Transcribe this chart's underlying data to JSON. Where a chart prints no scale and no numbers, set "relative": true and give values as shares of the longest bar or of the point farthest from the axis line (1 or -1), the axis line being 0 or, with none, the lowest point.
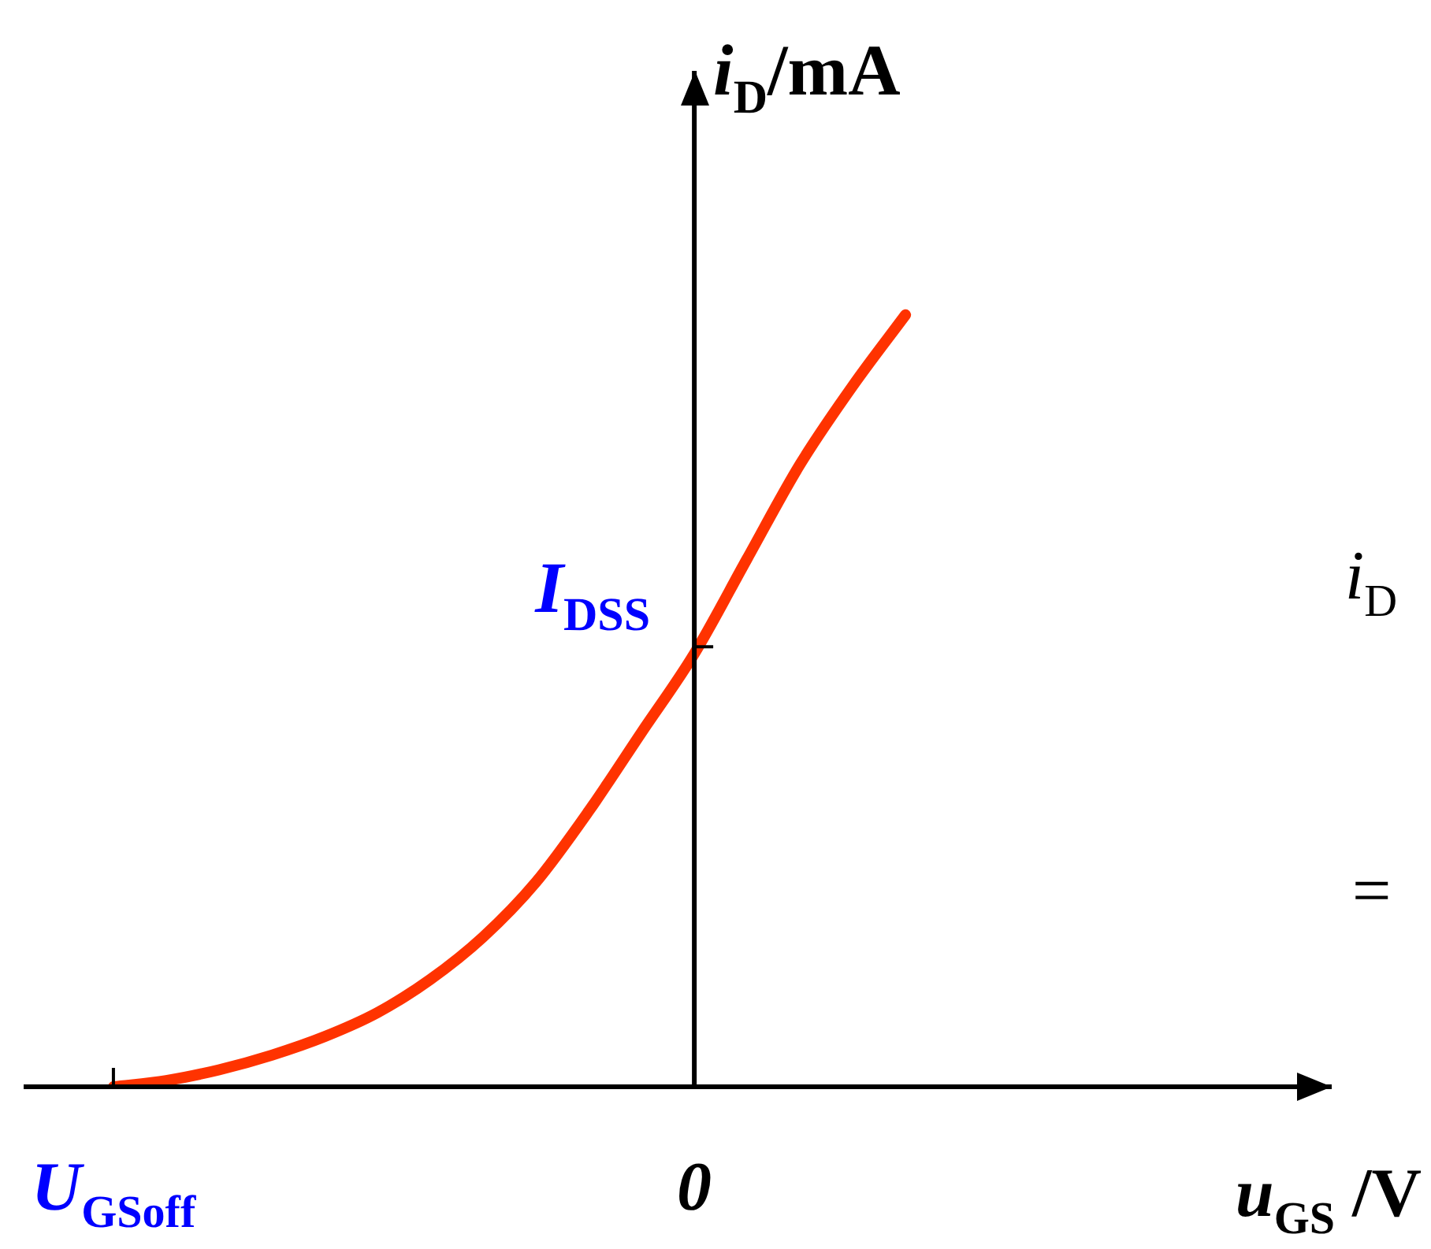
{
  "chart_data": {
    "type": "line",
    "relative": true,
    "categories": [
      "U$_{GSoff}$",
      null,
      null,
      null,
      null,
      null,
      null,
      null,
      null,
      null,
      null,
      "0",
      null,
      null,
      null,
      null
    ],
    "series": [
      {
        "color": "#ff3300",
        "values": [
          0,
          0.008,
          0.022,
          0.041,
          0.065,
          0.096,
          0.139,
          0.194,
          0.265,
          0.357,
          0.459,
          0.561,
          0.684,
          0.806,
          0.908,
          1
        ]
      }
    ],
    "xlabel": "u$_{GS}$ /V",
    "ylabel": "i$_{D}$/mA",
    "ref_lines": [
      {
        "axis": "y",
        "value": 0.57,
        "label": "I$_{DSS}$"
      }
    ],
    "annotations": [
      "i$_{D}$",
      "="
    ],
    "legend": false
  }
}
